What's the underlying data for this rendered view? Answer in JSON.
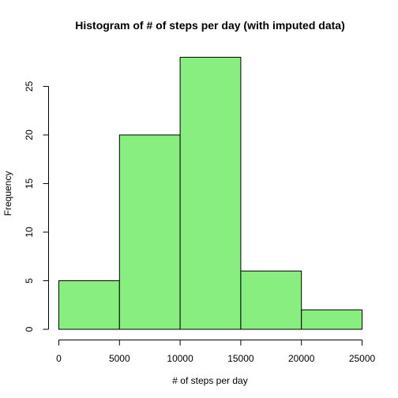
{
  "chart_data": {
    "type": "bar",
    "title": "Histogram of # of steps per day (with imputed data)",
    "xlabel": "# of steps per day",
    "ylabel": "Frequency",
    "bins": [
      {
        "start": 0,
        "end": 5000,
        "count": 5
      },
      {
        "start": 5000,
        "end": 10000,
        "count": 20
      },
      {
        "start": 10000,
        "end": 15000,
        "count": 28
      },
      {
        "start": 15000,
        "end": 20000,
        "count": 6
      },
      {
        "start": 20000,
        "end": 25000,
        "count": 2
      }
    ],
    "xlim": [
      0,
      25000
    ],
    "ylim": [
      0,
      28
    ],
    "xticks": [
      0,
      5000,
      10000,
      15000,
      20000,
      25000
    ],
    "yticks": [
      0,
      5,
      10,
      15,
      20,
      25
    ],
    "bar_color": "#87ee7f",
    "grid": false,
    "legend": "none"
  }
}
